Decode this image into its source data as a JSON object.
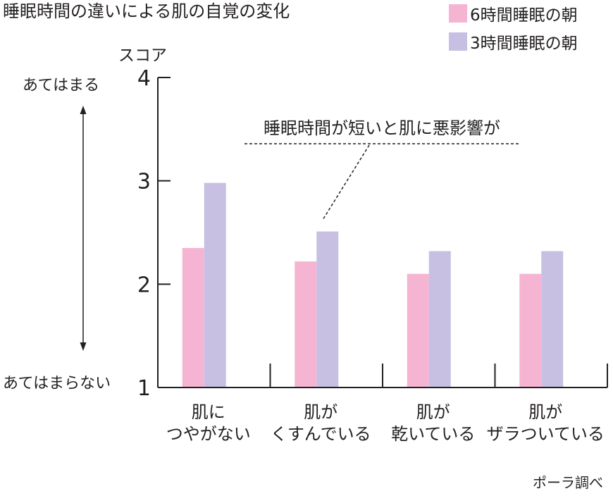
{
  "chart_data": {
    "type": "bar",
    "title": "睡眠時間の違いによる肌の自覚の変化",
    "ylabel": "スコア",
    "ylim": [
      1,
      4
    ],
    "yticks": [
      1,
      2,
      3,
      4
    ],
    "grid": false,
    "legend_position": "top-right",
    "scale_labels": {
      "top": "あてはまる",
      "bottom": "あてはまらない"
    },
    "categories": [
      [
        "肌に",
        "つやがない"
      ],
      [
        "肌が",
        "くすんでいる"
      ],
      [
        "肌が",
        "乾いている"
      ],
      [
        "肌が",
        "ザラついている"
      ]
    ],
    "series": [
      {
        "name": "6時間睡眠の朝",
        "color": "#f5b5d2",
        "values": [
          2.35,
          2.22,
          2.1,
          2.1
        ]
      },
      {
        "name": "3時間睡眠の朝",
        "color": "#c7c0e2",
        "values": [
          2.98,
          2.51,
          2.32,
          2.32
        ]
      }
    ],
    "annotation": "睡眠時間が短いと肌に悪影響が",
    "source": "ポーラ調べ"
  }
}
